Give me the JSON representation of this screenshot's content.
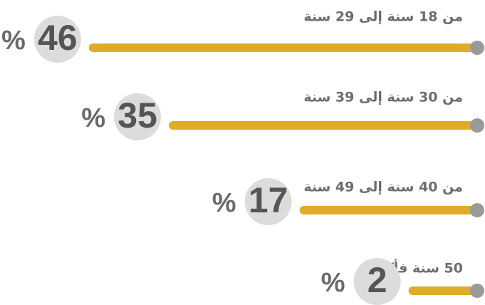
{
  "chart_data": {
    "type": "bar",
    "orientation": "horizontal",
    "categories": [
      "من 18 سنة إلى 29 سنة",
      "من 30 سنة إلى 39 سنة",
      "من 40 سنة إلى 49 سنة",
      "50 سنة فأكثر"
    ],
    "values": [
      46,
      35,
      17,
      2
    ],
    "unit": "%",
    "color": "#e0ab2a"
  }
}
